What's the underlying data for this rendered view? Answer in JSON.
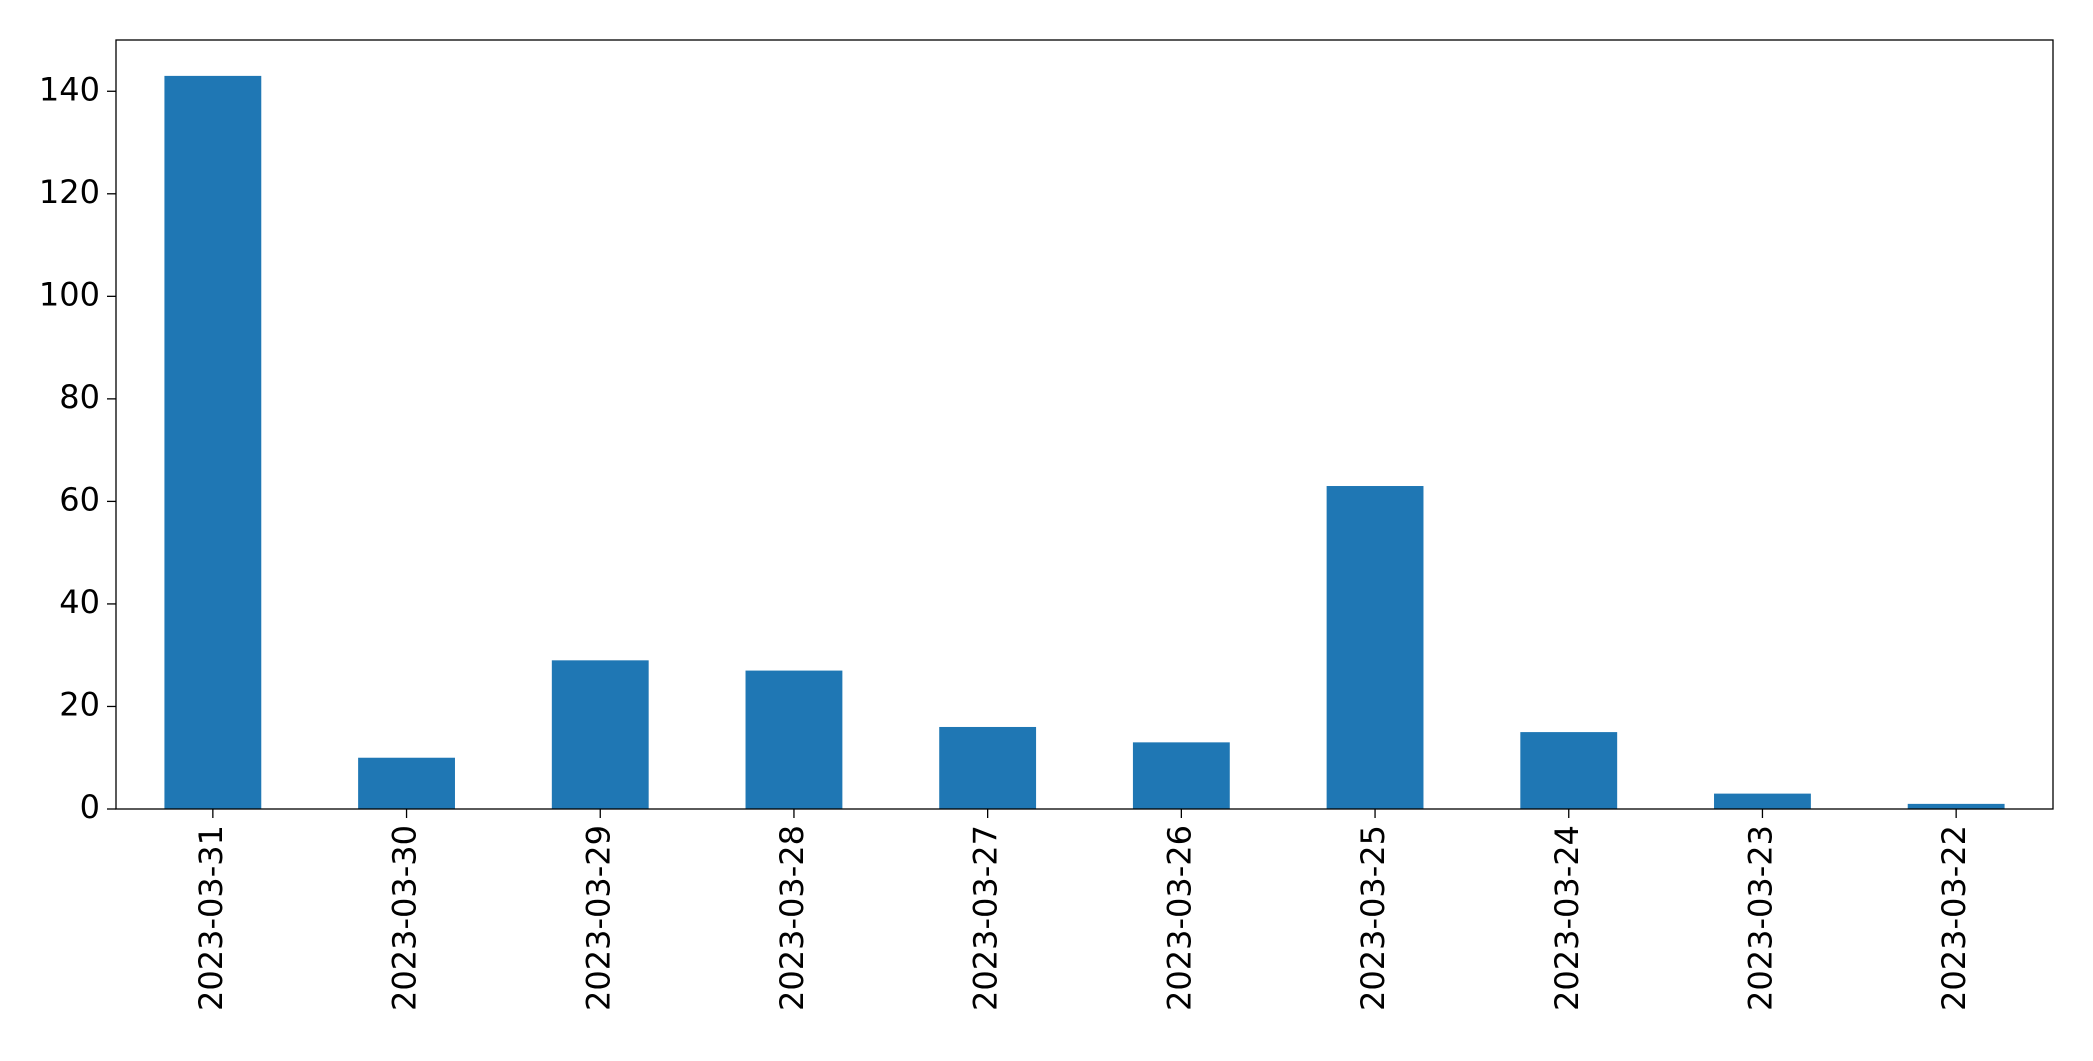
{
  "chart_data": {
    "type": "bar",
    "categories": [
      "2023-03-31",
      "2023-03-30",
      "2023-03-29",
      "2023-03-28",
      "2023-03-27",
      "2023-03-26",
      "2023-03-25",
      "2023-03-24",
      "2023-03-23",
      "2023-03-22"
    ],
    "values": [
      143,
      10,
      29,
      27,
      16,
      13,
      63,
      15,
      3,
      1
    ],
    "color": "#1f77b4",
    "ylim": [
      0,
      150
    ],
    "yticks": [
      0,
      20,
      40,
      60,
      80,
      100,
      120,
      140
    ],
    "grid": false
  }
}
